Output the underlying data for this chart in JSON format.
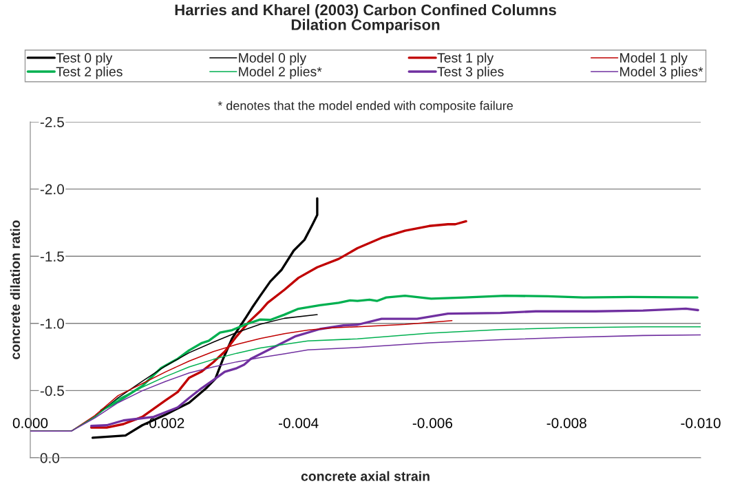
{
  "chart_data": {
    "type": "line",
    "title": "Harries and Kharel (2003) Carbon Confined Columns\nDilation Comparison",
    "annotations": [
      "* denotes that the model ended with composite failure"
    ],
    "xlabel": "concrete axial strain",
    "ylabel": "concrete dilation ratio",
    "xlim": [
      0,
      -0.01
    ],
    "ylim": [
      0,
      -2.5
    ],
    "xticks": [
      {
        "value": 0,
        "label": "0.000"
      },
      {
        "value": -0.002,
        "label": "-0.002"
      },
      {
        "value": -0.004,
        "label": "-0.004"
      },
      {
        "value": -0.006,
        "label": "-0.006"
      },
      {
        "value": -0.008,
        "label": "-0.008"
      },
      {
        "value": -0.01,
        "label": "-0.010"
      }
    ],
    "yticks": [
      {
        "value": 0,
        "label": "0.0"
      },
      {
        "value": -0.5,
        "label": "-0.5"
      },
      {
        "value": -1.0,
        "label": "-1.0"
      },
      {
        "value": -1.5,
        "label": "-1.5"
      },
      {
        "value": -2.0,
        "label": "-2.0"
      },
      {
        "value": -2.5,
        "label": "-2.5"
      }
    ],
    "grid": "y",
    "legend": "top",
    "marker": "none",
    "line_style": "solid",
    "series": [
      {
        "name": "Test 0 ply",
        "color": "#000000",
        "x": [
          -0.00093,
          -0.00142,
          -0.00167,
          -0.00202,
          -0.00237,
          -0.00262,
          -0.00276,
          -0.00287,
          -0.00301,
          -0.00322,
          -0.00331,
          -0.00343,
          -0.00358,
          -0.00375,
          -0.00393,
          -0.00409,
          -0.00421,
          -0.00428,
          -0.00428,
          -0.00428
        ],
        "values": [
          -0.149,
          -0.166,
          -0.242,
          -0.322,
          -0.41,
          -0.516,
          -0.587,
          -0.729,
          -0.888,
          -1.047,
          -1.118,
          -1.206,
          -1.312,
          -1.4,
          -1.542,
          -1.622,
          -1.737,
          -1.807,
          -1.843,
          -1.931
        ]
      },
      {
        "name": "Model 0 ply",
        "color": "#000000",
        "x": [
          0,
          -0.00061,
          -0.00096,
          -0.00131,
          -0.00167,
          -0.00202,
          -0.00237,
          -0.00273,
          -0.00308,
          -0.00343,
          -0.00379,
          -0.00428
        ],
        "values": [
          -0.198,
          -0.198,
          -0.304,
          -0.446,
          -0.569,
          -0.684,
          -0.782,
          -0.861,
          -0.932,
          -0.994,
          -1.038,
          -1.065
        ]
      },
      {
        "name": "Test 1 ply",
        "color": "#c00000",
        "x": [
          -0.00091,
          -0.00114,
          -0.00139,
          -0.00167,
          -0.00202,
          -0.0022,
          -0.00237,
          -0.00255,
          -0.00273,
          -0.0029,
          -0.00308,
          -0.00326,
          -0.00343,
          -0.00354,
          -0.00379,
          -0.004,
          -0.00428,
          -0.0046,
          -0.00488,
          -0.00524,
          -0.00559,
          -0.00595,
          -0.00623,
          -0.00634,
          -0.0065
        ],
        "values": [
          -0.225,
          -0.225,
          -0.251,
          -0.304,
          -0.428,
          -0.49,
          -0.596,
          -0.64,
          -0.711,
          -0.79,
          -0.905,
          -1.011,
          -1.091,
          -1.153,
          -1.25,
          -1.339,
          -1.418,
          -1.48,
          -1.56,
          -1.637,
          -1.69,
          -1.725,
          -1.738,
          -1.738,
          -1.76
        ]
      },
      {
        "name": "Model 1 ply",
        "color": "#c00000",
        "x": [
          0,
          -0.00061,
          -0.00096,
          -0.00131,
          -0.00167,
          -0.00202,
          -0.00237,
          -0.00273,
          -0.00308,
          -0.00343,
          -0.00379,
          -0.00414,
          -0.0045,
          -0.00488,
          -0.00559,
          -0.00629
        ],
        "values": [
          -0.198,
          -0.198,
          -0.313,
          -0.463,
          -0.552,
          -0.64,
          -0.72,
          -0.79,
          -0.844,
          -0.888,
          -0.923,
          -0.95,
          -0.967,
          -0.975,
          -0.993,
          -1.021
        ]
      },
      {
        "name": "Test 2 plies",
        "color": "#00b050",
        "x": [
          -0.00106,
          -0.00131,
          -0.00167,
          -0.00195,
          -0.0022,
          -0.00237,
          -0.00255,
          -0.00266,
          -0.00283,
          -0.00301,
          -0.00322,
          -0.00343,
          -0.00358,
          -0.00379,
          -0.004,
          -0.00432,
          -0.0046,
          -0.00477,
          -0.00488,
          -0.00506,
          -0.00517,
          -0.00531,
          -0.00559,
          -0.00598,
          -0.00648,
          -0.00708,
          -0.00772,
          -0.00825,
          -0.00896,
          -0.00995
        ],
        "values": [
          -0.354,
          -0.419,
          -0.534,
          -0.667,
          -0.737,
          -0.8,
          -0.852,
          -0.87,
          -0.932,
          -0.95,
          -0.994,
          -1.029,
          -1.026,
          -1.065,
          -1.109,
          -1.135,
          -1.153,
          -1.171,
          -1.167,
          -1.176,
          -1.167,
          -1.193,
          -1.206,
          -1.184,
          -1.193,
          -1.206,
          -1.202,
          -1.193,
          -1.197,
          -1.193
        ]
      },
      {
        "name": "Model 2 plies*",
        "color": "#00b050",
        "x": [
          0,
          -0.00061,
          -0.00096,
          -0.00131,
          -0.00167,
          -0.00202,
          -0.00237,
          -0.00273,
          -0.00308,
          -0.00343,
          -0.00379,
          -0.00414,
          -0.00488,
          -0.00595,
          -0.00701,
          -0.00807,
          -0.00914,
          -0.01
        ],
        "values": [
          -0.198,
          -0.198,
          -0.304,
          -0.437,
          -0.525,
          -0.605,
          -0.676,
          -0.732,
          -0.778,
          -0.817,
          -0.844,
          -0.87,
          -0.885,
          -0.927,
          -0.954,
          -0.968,
          -0.975,
          -0.975
        ]
      },
      {
        "name": "Test 3 plies",
        "color": "#7030a0",
        "x": [
          -0.00091,
          -0.00114,
          -0.00139,
          -0.00184,
          -0.0022,
          -0.00237,
          -0.00255,
          -0.00273,
          -0.0029,
          -0.00308,
          -0.00319,
          -0.00329,
          -0.00361,
          -0.00396,
          -0.00432,
          -0.00467,
          -0.00488,
          -0.00524,
          -0.00577,
          -0.00623,
          -0.00701,
          -0.00754,
          -0.00843,
          -0.00914,
          -0.00978,
          -0.00996
        ],
        "values": [
          -0.237,
          -0.242,
          -0.278,
          -0.304,
          -0.375,
          -0.446,
          -0.516,
          -0.578,
          -0.64,
          -0.667,
          -0.693,
          -0.737,
          -0.817,
          -0.905,
          -0.958,
          -0.985,
          -0.99,
          -1.034,
          -1.034,
          -1.073,
          -1.078,
          -1.09,
          -1.09,
          -1.096,
          -1.11,
          -1.099
        ]
      },
      {
        "name": "Model 3 plies*",
        "color": "#7030a0",
        "x": [
          0,
          -0.00061,
          -0.00096,
          -0.00131,
          -0.00167,
          -0.00202,
          -0.00237,
          -0.00273,
          -0.00308,
          -0.00343,
          -0.00379,
          -0.00414,
          -0.00488,
          -0.00595,
          -0.00701,
          -0.00807,
          -0.00914,
          -0.01
        ],
        "values": [
          -0.198,
          -0.198,
          -0.295,
          -0.41,
          -0.499,
          -0.569,
          -0.631,
          -0.676,
          -0.714,
          -0.746,
          -0.773,
          -0.803,
          -0.821,
          -0.856,
          -0.879,
          -0.897,
          -0.91,
          -0.915
        ]
      }
    ]
  }
}
